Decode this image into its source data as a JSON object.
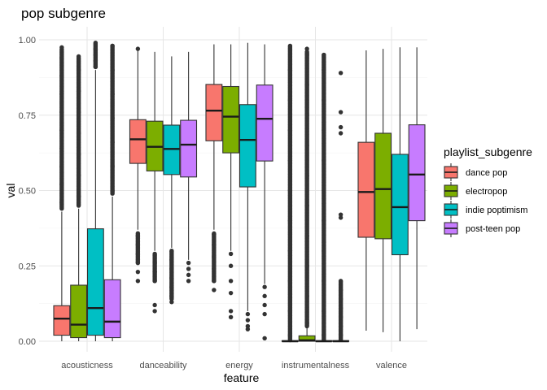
{
  "chart_data": {
    "type": "boxplot",
    "title": "pop subgenre",
    "xlabel": "feature",
    "ylabel": "val",
    "ylim": [
      0,
      1
    ],
    "yticks": [
      0,
      0.25,
      0.5,
      0.75,
      1
    ],
    "ytick_labels": [
      "0.00",
      "0.25",
      "0.50",
      "0.75",
      "1.00"
    ],
    "grid": true,
    "legend": {
      "title": "playlist_subgenre",
      "placement": "right"
    },
    "categories": [
      "acousticness",
      "danceability",
      "energy",
      "instrumentalness",
      "valence"
    ],
    "series": [
      {
        "name": "dance pop",
        "color": "#F8766D",
        "boxes": [
          {
            "min": 0.0,
            "q1": 0.02,
            "median": 0.075,
            "q3": 0.118,
            "max": 0.43,
            "outliers": {
              "dense_from": 0.44,
              "dense_to": 0.97,
              "points": [
                0.46,
                0.52,
                0.58,
                0.64,
                0.7,
                0.76,
                0.82,
                0.88,
                0.94,
                0.975
              ]
            }
          },
          {
            "min": 0.37,
            "q1": 0.59,
            "median": 0.67,
            "q3": 0.735,
            "max": 0.975,
            "outliers": {
              "dense_from": 0.26,
              "dense_to": 0.36,
              "points": [
                0.2,
                0.23,
                0.26,
                0.29,
                0.32,
                0.35,
                0.97
              ]
            }
          },
          {
            "min": 0.37,
            "q1": 0.665,
            "median": 0.765,
            "q3": 0.852,
            "max": 0.985,
            "outliers": {
              "dense_from": 0.2,
              "dense_to": 0.36,
              "points": [
                0.17,
                0.2,
                0.24,
                0.28,
                0.32,
                0.355
              ]
            }
          },
          {
            "min": 0.0,
            "q1": 0.0,
            "median": 0.0,
            "q3": 0.002,
            "max": 0.004,
            "outliers": {
              "dense_from": 0.004,
              "dense_to": 0.98,
              "points": [
                0.02,
                0.1,
                0.2,
                0.3,
                0.4,
                0.5,
                0.6,
                0.7,
                0.8,
                0.9,
                0.98
              ]
            }
          },
          {
            "min": 0.035,
            "q1": 0.345,
            "median": 0.495,
            "q3": 0.66,
            "max": 0.965,
            "outliers": {
              "dense_from": null,
              "dense_to": null,
              "points": []
            }
          }
        ]
      },
      {
        "name": "electropop",
        "color": "#7CAE00",
        "boxes": [
          {
            "min": 0.0,
            "q1": 0.012,
            "median": 0.055,
            "q3": 0.186,
            "max": 0.44,
            "outliers": {
              "dense_from": 0.45,
              "dense_to": 0.94,
              "points": [
                0.48,
                0.55,
                0.62,
                0.69,
                0.76,
                0.83,
                0.9,
                0.945
              ]
            }
          },
          {
            "min": 0.3,
            "q1": 0.565,
            "median": 0.645,
            "q3": 0.73,
            "max": 0.96,
            "outliers": {
              "dense_from": 0.2,
              "dense_to": 0.29,
              "points": [
                0.1,
                0.12,
                0.2,
                0.23,
                0.26,
                0.29
              ]
            }
          },
          {
            "min": 0.3,
            "q1": 0.625,
            "median": 0.745,
            "q3": 0.845,
            "max": 0.985,
            "outliers": {
              "dense_from": null,
              "dense_to": null,
              "points": [
                0.08,
                0.1,
                0.16,
                0.2,
                0.25,
                0.29
              ]
            }
          },
          {
            "min": 0.0,
            "q1": 0.0,
            "median": 0.003,
            "q3": 0.018,
            "max": 0.045,
            "outliers": {
              "dense_from": 0.05,
              "dense_to": 0.96,
              "points": [
                0.06,
                0.15,
                0.25,
                0.35,
                0.45,
                0.55,
                0.65,
                0.75,
                0.85,
                0.95,
                0.97
              ]
            }
          },
          {
            "min": 0.03,
            "q1": 0.34,
            "median": 0.505,
            "q3": 0.69,
            "max": 0.97,
            "outliers": {
              "dense_from": null,
              "dense_to": null,
              "points": []
            }
          }
        ]
      },
      {
        "name": "indie poptimism",
        "color": "#00BFC4",
        "boxes": [
          {
            "min": 0.0,
            "q1": 0.02,
            "median": 0.11,
            "q3": 0.373,
            "max": 0.9,
            "outliers": {
              "dense_from": 0.91,
              "dense_to": 0.99,
              "points": [
                0.91,
                0.93,
                0.95,
                0.97,
                0.99
              ]
            }
          },
          {
            "min": 0.31,
            "q1": 0.553,
            "median": 0.638,
            "q3": 0.717,
            "max": 0.945,
            "outliers": {
              "dense_from": 0.14,
              "dense_to": 0.3,
              "points": [
                0.13,
                0.15,
                0.18,
                0.21,
                0.24,
                0.27,
                0.3
              ]
            }
          },
          {
            "min": 0.1,
            "q1": 0.512,
            "median": 0.668,
            "q3": 0.785,
            "max": 0.99,
            "outliers": {
              "dense_from": null,
              "dense_to": null,
              "points": [
                0.04,
                0.05,
                0.07,
                0.09
              ]
            }
          },
          {
            "min": 0.0,
            "q1": 0.0,
            "median": 0.0,
            "q3": 0.002,
            "max": 0.004,
            "outliers": {
              "dense_from": 0.005,
              "dense_to": 0.95,
              "points": [
                0.02,
                0.1,
                0.2,
                0.3,
                0.4,
                0.5,
                0.6,
                0.7,
                0.8,
                0.9,
                0.95
              ]
            }
          },
          {
            "min": 0.0,
            "q1": 0.287,
            "median": 0.445,
            "q3": 0.62,
            "max": 0.975,
            "outliers": {
              "dense_from": null,
              "dense_to": null,
              "points": []
            }
          }
        ]
      },
      {
        "name": "post-teen pop",
        "color": "#C77CFF",
        "boxes": [
          {
            "min": 0.0,
            "q1": 0.012,
            "median": 0.065,
            "q3": 0.204,
            "max": 0.48,
            "outliers": {
              "dense_from": 0.49,
              "dense_to": 0.98,
              "points": [
                0.5,
                0.58,
                0.66,
                0.74,
                0.82,
                0.9,
                0.98
              ]
            }
          },
          {
            "min": 0.27,
            "q1": 0.545,
            "median": 0.652,
            "q3": 0.733,
            "max": 0.96,
            "outliers": {
              "dense_from": null,
              "dense_to": null,
              "points": [
                0.2,
                0.22,
                0.24,
                0.26
              ]
            }
          },
          {
            "min": 0.19,
            "q1": 0.598,
            "median": 0.738,
            "q3": 0.85,
            "max": 0.985,
            "outliers": {
              "dense_from": null,
              "dense_to": null,
              "points": [
                0.01,
                0.09,
                0.12,
                0.15,
                0.18
              ]
            }
          },
          {
            "min": 0.0,
            "q1": 0.0,
            "median": 0.0,
            "q3": 0.002,
            "max": 0.004,
            "outliers": {
              "dense_from": 0.005,
              "dense_to": 0.2,
              "points": [
                0.02,
                0.05,
                0.08,
                0.11,
                0.14,
                0.17,
                0.2,
                0.41,
                0.42,
                0.69,
                0.71,
                0.76,
                0.89
              ]
            }
          },
          {
            "min": 0.04,
            "q1": 0.4,
            "median": 0.553,
            "q3": 0.718,
            "max": 0.975,
            "outliers": {
              "dense_from": null,
              "dense_to": null,
              "points": []
            }
          }
        ]
      }
    ]
  }
}
